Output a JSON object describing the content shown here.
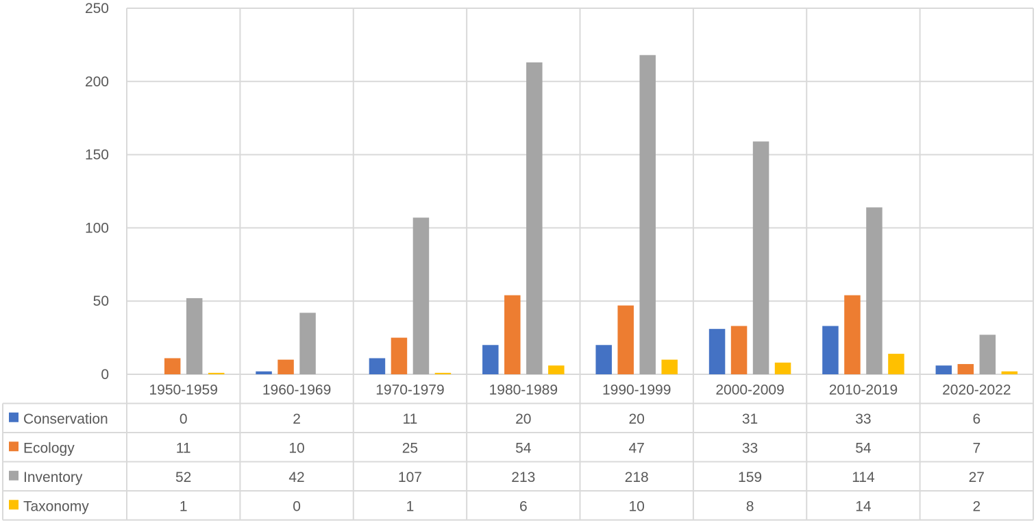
{
  "chart_data": {
    "type": "bar",
    "title": "",
    "xlabel": "",
    "ylabel": "",
    "ylim": [
      0,
      250
    ],
    "yticks": [
      0,
      50,
      100,
      150,
      200,
      250
    ],
    "grid": true,
    "legend": "data-table",
    "categories": [
      "1950-1959",
      "1960-1969",
      "1970-1979",
      "1980-1989",
      "1990-1999",
      "2000-2009",
      "2010-2019",
      "2020-2022"
    ],
    "series": [
      {
        "name": "Conservation",
        "color": "#4472c4",
        "values": [
          0,
          2,
          11,
          20,
          20,
          31,
          33,
          6
        ]
      },
      {
        "name": "Ecology",
        "color": "#ed7d31",
        "values": [
          11,
          10,
          25,
          54,
          47,
          33,
          54,
          7
        ]
      },
      {
        "name": "Inventory",
        "color": "#a5a5a5",
        "values": [
          52,
          42,
          107,
          213,
          218,
          159,
          114,
          27
        ]
      },
      {
        "name": "Taxonomy",
        "color": "#ffc000",
        "values": [
          1,
          0,
          1,
          6,
          10,
          8,
          14,
          2
        ]
      }
    ]
  }
}
